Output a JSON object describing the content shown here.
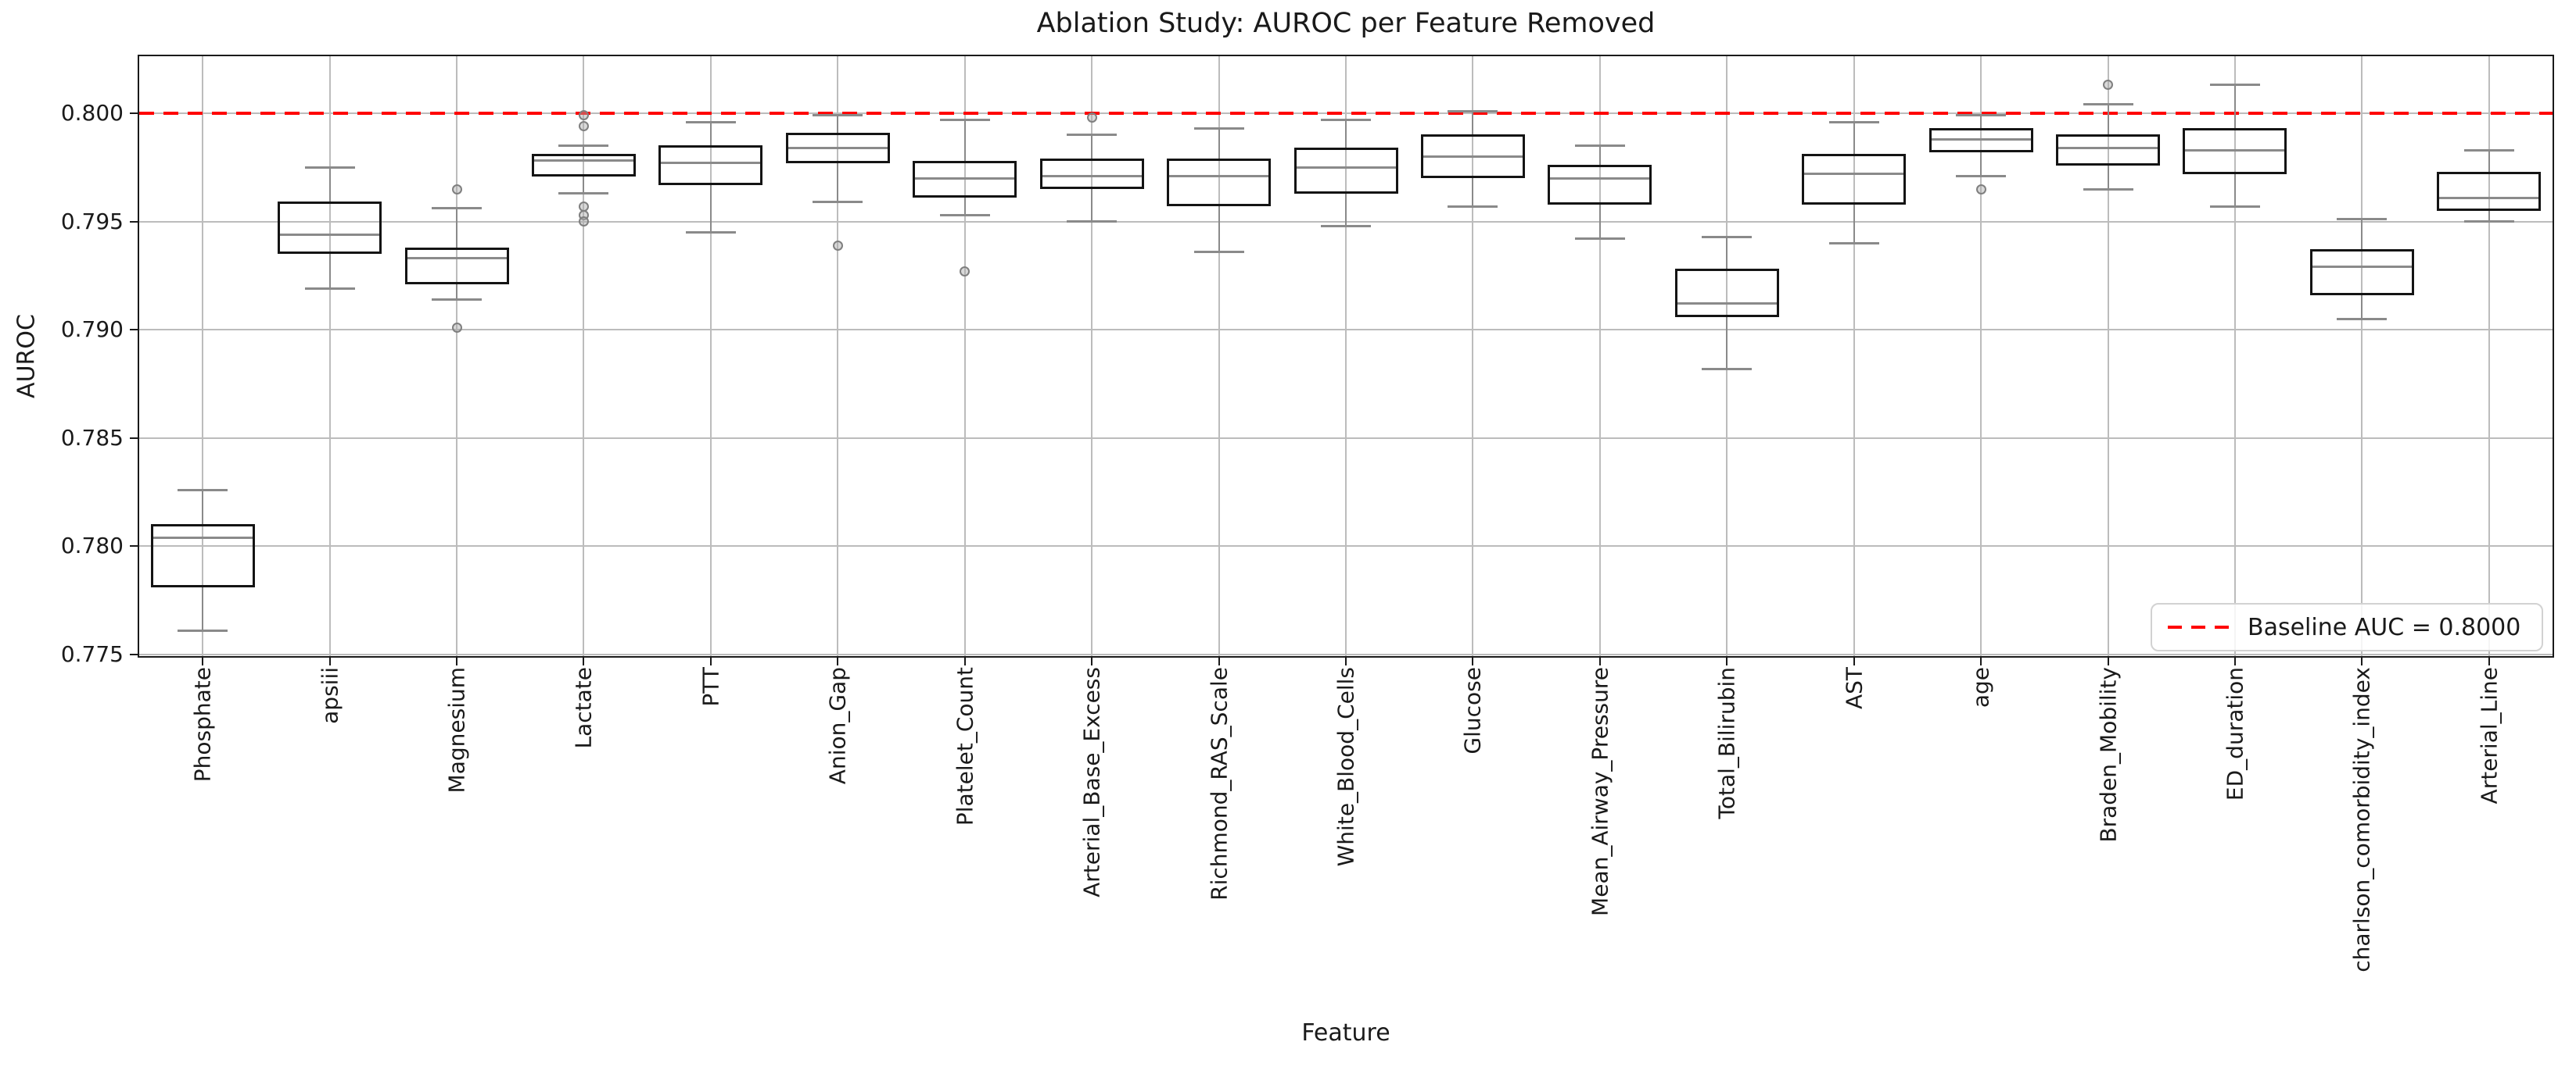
{
  "chart_data": {
    "type": "box",
    "title": "Ablation Study: AUROC per Feature Removed",
    "xlabel": "Feature",
    "ylabel": "AUROC",
    "ylim": [
      0.7749,
      0.8026
    ],
    "yticks": [
      "0.800",
      "0.795",
      "0.790",
      "0.785",
      "0.780",
      "0.775"
    ],
    "grid": true,
    "baseline": {
      "value": 0.8,
      "color": "#ff0000",
      "style": "dashed"
    },
    "legend": {
      "label": "Baseline AUC = 0.8000",
      "position": "lower right",
      "line_color": "#ff0000"
    },
    "categories": [
      "Phosphate",
      "apsiii",
      "Magnesium",
      "Lactate",
      "PTT",
      "Anion_Gap",
      "Platelet_Count",
      "Arterial_Base_Excess",
      "Richmond_RAS_Scale",
      "White_Blood_Cells",
      "Glucose",
      "Mean_Airway_Pressure",
      "Total_Bilirubin",
      "AST",
      "age",
      "Braden_Mobility",
      "ED_duration",
      "charlson_comorbidity_index",
      "Arterial_Line"
    ],
    "boxes": [
      {
        "name": "Phosphate",
        "whislo": 0.7761,
        "q1": 0.7782,
        "med": 0.7804,
        "q3": 0.7809,
        "whishi": 0.7826,
        "fliers": []
      },
      {
        "name": "apsiii",
        "whislo": 0.7919,
        "q1": 0.7936,
        "med": 0.7944,
        "q3": 0.7958,
        "whishi": 0.7975,
        "fliers": []
      },
      {
        "name": "Magnesium",
        "whislo": 0.7914,
        "q1": 0.7922,
        "med": 0.7933,
        "q3": 0.7937,
        "whishi": 0.7956,
        "fliers": [
          0.7965,
          0.7901
        ]
      },
      {
        "name": "Lactate",
        "whislo": 0.7963,
        "q1": 0.7972,
        "med": 0.7978,
        "q3": 0.798,
        "whishi": 0.7985,
        "fliers": [
          0.7999,
          0.7994,
          0.7957,
          0.7953,
          0.795
        ]
      },
      {
        "name": "PTT",
        "whislo": 0.7945,
        "q1": 0.7968,
        "med": 0.7977,
        "q3": 0.7984,
        "whishi": 0.7996,
        "fliers": []
      },
      {
        "name": "Anion_Gap",
        "whislo": 0.7959,
        "q1": 0.7978,
        "med": 0.7984,
        "q3": 0.799,
        "whishi": 0.7999,
        "fliers": [
          0.7939
        ]
      },
      {
        "name": "Platelet_Count",
        "whislo": 0.7953,
        "q1": 0.7962,
        "med": 0.797,
        "q3": 0.7977,
        "whishi": 0.7997,
        "fliers": [
          0.7927
        ]
      },
      {
        "name": "Arterial_Base_Excess",
        "whislo": 0.795,
        "q1": 0.7966,
        "med": 0.7971,
        "q3": 0.7978,
        "whishi": 0.799,
        "fliers": [
          0.7998
        ]
      },
      {
        "name": "Richmond_RAS_Scale",
        "whislo": 0.7936,
        "q1": 0.7958,
        "med": 0.7971,
        "q3": 0.7978,
        "whishi": 0.7993,
        "fliers": []
      },
      {
        "name": "White_Blood_Cells",
        "whislo": 0.7948,
        "q1": 0.7964,
        "med": 0.7975,
        "q3": 0.7983,
        "whishi": 0.7997,
        "fliers": []
      },
      {
        "name": "Glucose",
        "whislo": 0.7957,
        "q1": 0.7971,
        "med": 0.798,
        "q3": 0.7989,
        "whishi": 0.8001,
        "fliers": []
      },
      {
        "name": "Mean_Airway_Pressure",
        "whislo": 0.7942,
        "q1": 0.7959,
        "med": 0.797,
        "q3": 0.7975,
        "whishi": 0.7985,
        "fliers": []
      },
      {
        "name": "Total_Bilirubin",
        "whislo": 0.7882,
        "q1": 0.7907,
        "med": 0.7912,
        "q3": 0.7927,
        "whishi": 0.7943,
        "fliers": []
      },
      {
        "name": "AST",
        "whislo": 0.794,
        "q1": 0.7959,
        "med": 0.7972,
        "q3": 0.798,
        "whishi": 0.7996,
        "fliers": []
      },
      {
        "name": "age",
        "whislo": 0.7971,
        "q1": 0.7983,
        "med": 0.7988,
        "q3": 0.7992,
        "whishi": 0.7999,
        "fliers": [
          0.7965
        ]
      },
      {
        "name": "Braden_Mobility",
        "whislo": 0.7965,
        "q1": 0.7977,
        "med": 0.7984,
        "q3": 0.7989,
        "whishi": 0.8004,
        "fliers": [
          0.8013
        ]
      },
      {
        "name": "ED_duration",
        "whislo": 0.7957,
        "q1": 0.7973,
        "med": 0.7983,
        "q3": 0.7992,
        "whishi": 0.8013,
        "fliers": []
      },
      {
        "name": "charlson_comorbidity_index",
        "whislo": 0.7905,
        "q1": 0.7917,
        "med": 0.7929,
        "q3": 0.7936,
        "whishi": 0.7951,
        "fliers": []
      },
      {
        "name": "Arterial_Line",
        "whislo": 0.795,
        "q1": 0.7956,
        "med": 0.7961,
        "q3": 0.7972,
        "whishi": 0.7983,
        "fliers": []
      }
    ]
  }
}
